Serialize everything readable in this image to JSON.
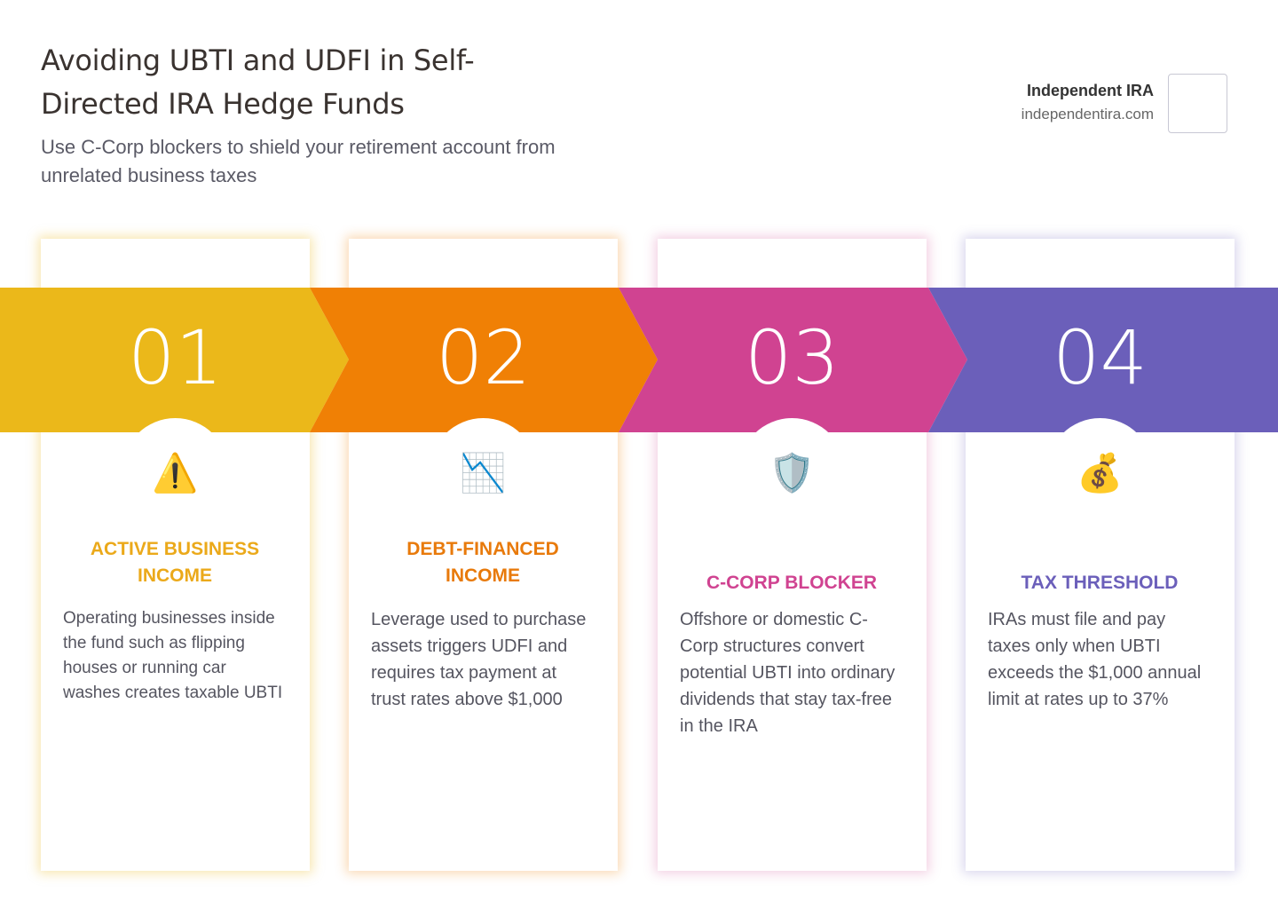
{
  "header": {
    "title": "Avoiding UBTI and UDFI in Self-Directed IRA Hedge Funds",
    "subtitle": "Use C-Corp blockers to shield your retirement account from unrelated business taxes"
  },
  "brand": {
    "name": "Independent IRA",
    "url": "independentira.com"
  },
  "steps": [
    {
      "number": "01",
      "icon": "⚠️",
      "heading": "ACTIVE BUSINESS INCOME",
      "body": "Operating businesses inside the fund such as flipping houses or running car washes creates taxable UBTI"
    },
    {
      "number": "02",
      "icon": "📉",
      "heading": "DEBT-FINANCED INCOME",
      "body": "Leverage used to purchase assets triggers UDFI and requires tax payment at trust rates above $1,000"
    },
    {
      "number": "03",
      "icon": "🛡️",
      "heading": "C-CORP BLOCKER",
      "body": "Offshore or domestic C-Corp structures convert potential UBTI into ordinary dividends that stay tax-free in the IRA"
    },
    {
      "number": "04",
      "icon": "💰",
      "heading": "TAX THRESHOLD",
      "body": "IRAs must file and pay taxes only when UBTI exceeds the $1,000 annual limit at rates up to 37%"
    }
  ]
}
